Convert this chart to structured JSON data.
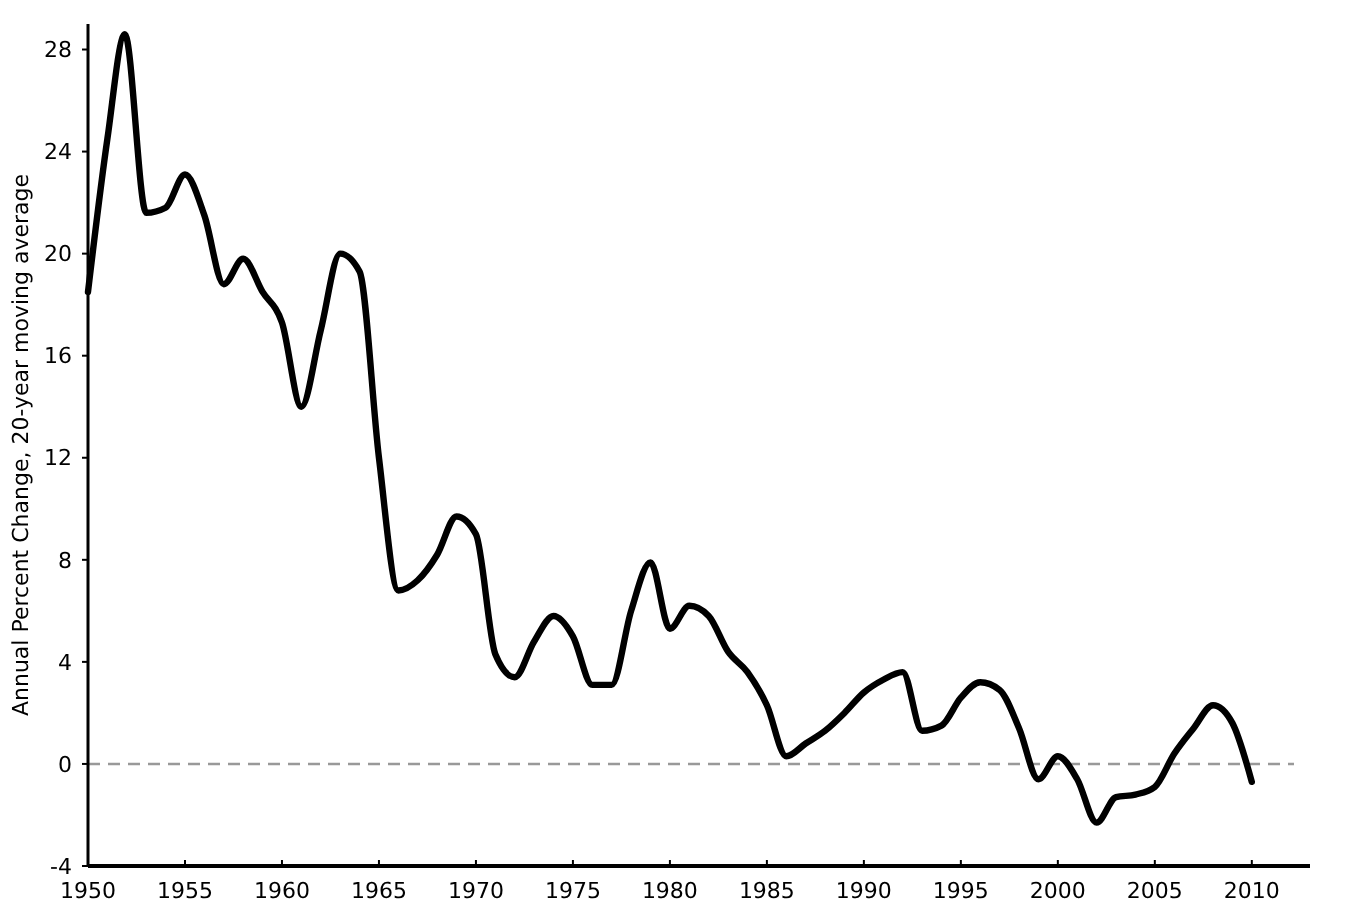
{
  "chart_data": {
    "type": "line",
    "ylabel": "Annual Percent Change, 20-year moving average",
    "x": [
      1950,
      1951,
      1951.9,
      1953,
      1954,
      1955,
      1956,
      1957,
      1958,
      1959,
      1960,
      1961,
      1962,
      1963,
      1964,
      1965,
      1966,
      1967,
      1968,
      1969,
      1970,
      1971,
      1972,
      1973,
      1974,
      1975,
      1976,
      1977,
      1978,
      1979,
      1980,
      1981,
      1982,
      1983,
      1984,
      1985,
      1986,
      1987,
      1988,
      1989,
      1990,
      1991,
      1992,
      1993,
      1994,
      1995,
      1996,
      1997,
      1998,
      1999,
      2000,
      2001,
      2002,
      2003,
      2004,
      2005,
      2006,
      2007,
      2008,
      2009,
      2010
    ],
    "series": [
      {
        "color": "#000000",
        "values": [
          18.5,
          24.5,
          28.6,
          21.6,
          21.8,
          23.1,
          21.5,
          18.8,
          19.8,
          18.5,
          17.3,
          14,
          17,
          20,
          19.3,
          12,
          6.8,
          7.2,
          8.2,
          9.7,
          9,
          4.3,
          3.4,
          4.8,
          5.8,
          5,
          3.1,
          3.1,
          6,
          7.9,
          5.3,
          6.2,
          5.8,
          4.4,
          3.6,
          2.3,
          0.3,
          0.8,
          1.3,
          2,
          2.8,
          3.3,
          3.6,
          1.3,
          1.5,
          2.6,
          3.2,
          2.9,
          1.4,
          -0.6,
          0.3,
          -0.6,
          -2.3,
          -1.3,
          -1.2,
          -0.9,
          0.4,
          1.4,
          2.3,
          1.6,
          -0.7
        ]
      }
    ],
    "xlim": [
      1950,
      2013
    ],
    "xticks": [
      1950,
      1955,
      1960,
      1965,
      1970,
      1975,
      1980,
      1985,
      1990,
      1995,
      2000,
      2005,
      2010
    ],
    "ylim": [
      -4,
      29
    ],
    "yticks": [
      -4,
      0,
      4,
      8,
      12,
      16,
      20,
      24,
      28
    ],
    "ref_lines": [
      {
        "axis": "y",
        "value": 0,
        "color": "#999999",
        "line_style": "dashed"
      }
    ],
    "grid": false,
    "marker": "none",
    "line_style": "solid"
  }
}
